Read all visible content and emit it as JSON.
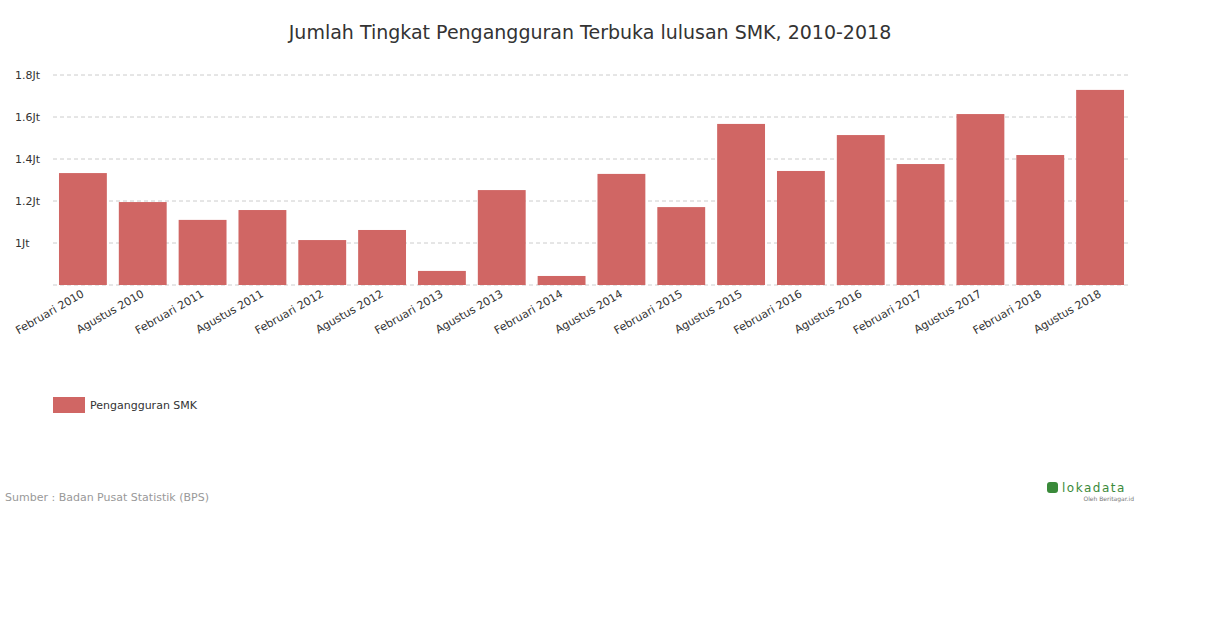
{
  "chart_data": {
    "type": "bar",
    "title": "Jumlah Tingkat Pengangguran Terbuka lulusan SMK, 2010-2018",
    "categories": [
      "Februari 2010",
      "Agustus 2010",
      "Februari 2011",
      "Agustus 2011",
      "Februari 2012",
      "Agustus 2012",
      "Februari 2013",
      "Agustus 2013",
      "Februari 2014",
      "Agustus 2014",
      "Februari 2015",
      "Agustus 2015",
      "Februari 2016",
      "Agustus 2016",
      "Februari 2017",
      "Agustus 2017",
      "Februari 2018",
      "Agustus 2018"
    ],
    "series": [
      {
        "name": "Pengangguran SMK",
        "color": "#d06664",
        "values": [
          1.333,
          1.195,
          1.11,
          1.157,
          1.014,
          1.062,
          0.867,
          1.252,
          0.843,
          1.329,
          1.171,
          1.567,
          1.343,
          1.514,
          1.376,
          1.614,
          1.419,
          1.729
        ]
      }
    ],
    "ylim": [
      0.8,
      1.8
    ],
    "yticks": [
      {
        "value": 1,
        "label": "1Jt"
      },
      {
        "value": 1.2,
        "label": "1.2Jt"
      },
      {
        "value": 1.4,
        "label": "1.4Jt"
      },
      {
        "value": 1.6,
        "label": "1.6Jt"
      },
      {
        "value": 1.8,
        "label": "1.8Jt"
      }
    ],
    "grid": true,
    "legend": "bottom-left",
    "source": "Sumber : Badan Pusat Statistik (BPS)",
    "annotations": [
      "lokadata",
      "Oleh Beritagar.id"
    ]
  }
}
